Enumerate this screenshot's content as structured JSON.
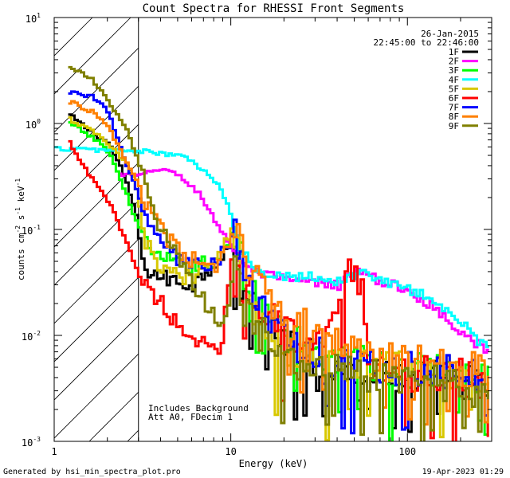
{
  "chart_data": {
    "type": "line",
    "title": "Count Spectra for RHESSI Front Segments",
    "xlabel": "Energy (keV)",
    "ylabel_parts": {
      "base": "counts cm",
      "exp1": "-2",
      "mid1": " s",
      "exp2": "-1",
      "mid2": " keV",
      "exp3": "-1"
    },
    "xscale": "log",
    "yscale": "log",
    "xlim": [
      1,
      300
    ],
    "ylim": [
      0.001,
      10
    ],
    "x_ticks": [
      {
        "value": 1,
        "label": "1"
      },
      {
        "value": 10,
        "label": "10"
      },
      {
        "value": 100,
        "label": "100"
      }
    ],
    "y_ticks": [
      {
        "value": 0.001,
        "label_base": "10",
        "label_exp": "-3"
      },
      {
        "value": 0.01,
        "label_base": "10",
        "label_exp": "-2"
      },
      {
        "value": 0.1,
        "label_base": "10",
        "label_exp": "-1"
      },
      {
        "value": 1,
        "label_base": "10",
        "label_exp": "0"
      },
      {
        "value": 10,
        "label_base": "10",
        "label_exp": "1"
      }
    ],
    "shaded_region": {
      "x_from": 1,
      "x_to": 3,
      "style": "hatched"
    },
    "date": "26-Jan-2015",
    "time_range": "22:45:00 to 22:46:00",
    "annotations": [
      "Includes Background",
      "Att A0, FDecim 1"
    ],
    "legend_position": "top-right",
    "series": [
      {
        "name": "1F",
        "color": "#000000",
        "anchors": [
          [
            1.2,
            1.2
          ],
          [
            1.5,
            0.9
          ],
          [
            2.0,
            0.65
          ],
          [
            2.4,
            0.35
          ],
          [
            2.9,
            0.13
          ],
          [
            3.1,
            0.045
          ],
          [
            4.0,
            0.035
          ],
          [
            6.0,
            0.03
          ],
          [
            8.0,
            0.05
          ],
          [
            10.5,
            0.08
          ],
          [
            11.5,
            0.025
          ],
          [
            15,
            0.012
          ],
          [
            20,
            0.008
          ],
          [
            30,
            0.006
          ],
          [
            50,
            0.005
          ],
          [
            80,
            0.0045
          ],
          [
            120,
            0.004
          ],
          [
            200,
            0.0038
          ],
          [
            290,
            0.0032
          ]
        ]
      },
      {
        "name": "2F",
        "color": "#ff00ff",
        "anchors": [
          [
            2.3,
            0.33
          ],
          [
            3.0,
            0.32
          ],
          [
            4.0,
            0.38
          ],
          [
            5.0,
            0.32
          ],
          [
            6.5,
            0.22
          ],
          [
            8.0,
            0.12
          ],
          [
            10.5,
            0.06
          ],
          [
            13,
            0.04
          ],
          [
            20,
            0.033
          ],
          [
            30,
            0.031
          ],
          [
            40,
            0.03
          ],
          [
            50,
            0.04
          ],
          [
            80,
            0.03
          ],
          [
            120,
            0.022
          ],
          [
            200,
            0.011
          ],
          [
            290,
            0.0065
          ]
        ]
      },
      {
        "name": "3F",
        "color": "#00ff00",
        "anchors": [
          [
            1.2,
            1.0
          ],
          [
            1.6,
            0.75
          ],
          [
            2.0,
            0.55
          ],
          [
            2.5,
            0.22
          ],
          [
            3.0,
            0.1
          ],
          [
            3.5,
            0.06
          ],
          [
            5.0,
            0.045
          ],
          [
            8.0,
            0.05
          ],
          [
            10.5,
            0.09
          ],
          [
            12,
            0.03
          ],
          [
            20,
            0.01
          ],
          [
            40,
            0.006
          ],
          [
            80,
            0.005
          ],
          [
            150,
            0.0045
          ],
          [
            290,
            0.004
          ]
        ]
      },
      {
        "name": "4F",
        "color": "#00ffff",
        "anchors": [
          [
            1.0,
            0.58
          ],
          [
            2.0,
            0.56
          ],
          [
            3.0,
            0.55
          ],
          [
            4.0,
            0.52
          ],
          [
            5.5,
            0.48
          ],
          [
            7.0,
            0.35
          ],
          [
            8.5,
            0.25
          ],
          [
            10,
            0.13
          ],
          [
            11,
            0.065
          ],
          [
            14,
            0.04
          ],
          [
            20,
            0.037
          ],
          [
            30,
            0.036
          ],
          [
            40,
            0.032
          ],
          [
            55,
            0.04
          ],
          [
            80,
            0.03
          ],
          [
            120,
            0.025
          ],
          [
            200,
            0.013
          ],
          [
            290,
            0.007
          ]
        ]
      },
      {
        "name": "5F",
        "color": "#d8c800",
        "anchors": [
          [
            1.2,
            1.1
          ],
          [
            1.7,
            0.8
          ],
          [
            2.3,
            0.5
          ],
          [
            2.8,
            0.3
          ],
          [
            3.2,
            0.08
          ],
          [
            4.0,
            0.04
          ],
          [
            6.0,
            0.035
          ],
          [
            8.0,
            0.06
          ],
          [
            10.5,
            0.1
          ],
          [
            12,
            0.02
          ],
          [
            20,
            0.008
          ],
          [
            40,
            0.0055
          ],
          [
            80,
            0.005
          ],
          [
            150,
            0.0045
          ],
          [
            290,
            0.0035
          ]
        ]
      },
      {
        "name": "6F",
        "color": "#ff0000",
        "anchors": [
          [
            1.2,
            0.65
          ],
          [
            1.5,
            0.35
          ],
          [
            2.0,
            0.18
          ],
          [
            2.5,
            0.08
          ],
          [
            3.0,
            0.035
          ],
          [
            4.0,
            0.02
          ],
          [
            5.0,
            0.012
          ],
          [
            7.0,
            0.008
          ],
          [
            8.5,
            0.006
          ],
          [
            9.5,
            0.03
          ],
          [
            10.5,
            0.08
          ],
          [
            12,
            0.03
          ],
          [
            20,
            0.01
          ],
          [
            30,
            0.008
          ],
          [
            52,
            0.06
          ],
          [
            60,
            0.006
          ],
          [
            100,
            0.0045
          ],
          [
            200,
            0.004
          ],
          [
            290,
            0.0035
          ]
        ]
      },
      {
        "name": "7F",
        "color": "#0000ff",
        "anchors": [
          [
            1.2,
            2.0
          ],
          [
            1.6,
            1.8
          ],
          [
            2.0,
            1.3
          ],
          [
            2.5,
            0.4
          ],
          [
            3.0,
            0.2
          ],
          [
            3.5,
            0.1
          ],
          [
            5.0,
            0.05
          ],
          [
            8.0,
            0.045
          ],
          [
            10.5,
            0.09
          ],
          [
            12,
            0.03
          ],
          [
            20,
            0.009
          ],
          [
            40,
            0.006
          ],
          [
            80,
            0.005
          ],
          [
            150,
            0.0045
          ],
          [
            290,
            0.004
          ]
        ]
      },
      {
        "name": "8F",
        "color": "#ff8000",
        "anchors": [
          [
            1.2,
            1.6
          ],
          [
            1.6,
            1.3
          ],
          [
            2.0,
            0.9
          ],
          [
            2.5,
            0.45
          ],
          [
            3.0,
            0.25
          ],
          [
            3.5,
            0.13
          ],
          [
            5.0,
            0.06
          ],
          [
            8.0,
            0.04
          ],
          [
            10.5,
            0.1
          ],
          [
            12,
            0.04
          ],
          [
            20,
            0.015
          ],
          [
            40,
            0.008
          ],
          [
            80,
            0.006
          ],
          [
            150,
            0.005
          ],
          [
            290,
            0.0045
          ]
        ]
      },
      {
        "name": "9F",
        "color": "#808000",
        "anchors": [
          [
            1.2,
            3.5
          ],
          [
            1.6,
            2.6
          ],
          [
            2.0,
            1.6
          ],
          [
            2.5,
            0.9
          ],
          [
            3.0,
            0.4
          ],
          [
            3.5,
            0.15
          ],
          [
            5.0,
            0.05
          ],
          [
            7.0,
            0.02
          ],
          [
            9.0,
            0.012
          ],
          [
            10.5,
            0.05
          ],
          [
            12,
            0.015
          ],
          [
            20,
            0.006
          ],
          [
            40,
            0.005
          ],
          [
            80,
            0.004
          ],
          [
            150,
            0.0035
          ],
          [
            290,
            0.003
          ]
        ]
      }
    ]
  },
  "footer": {
    "left": "Generated by hsi_min_spectra_plot.pro",
    "right": "19-Apr-2023 01:29"
  }
}
